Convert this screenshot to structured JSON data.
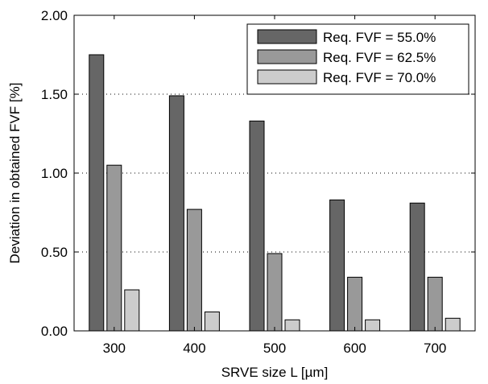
{
  "chart_data": {
    "type": "bar",
    "title": "",
    "xlabel": "SRVE size L [µm]",
    "ylabel": "Deviation in obtained FVF [%]",
    "categories": [
      "300",
      "400",
      "500",
      "600",
      "700"
    ],
    "ylim": [
      0,
      2
    ],
    "yticks": [
      "0.00",
      "0.50",
      "1.00",
      "1.50",
      "2.00"
    ],
    "yticks_values": [
      0,
      0.5,
      1.0,
      1.5,
      2.0
    ],
    "grid": "horizontal-dotted",
    "legend_position": "top-right",
    "series": [
      {
        "name": "Req. FVF = 55.0%",
        "color": "#666666",
        "values": [
          1.75,
          1.49,
          1.33,
          0.83,
          0.81
        ]
      },
      {
        "name": "Req. FVF = 62.5%",
        "color": "#999999",
        "values": [
          1.05,
          0.77,
          0.49,
          0.34,
          0.34
        ]
      },
      {
        "name": "Req. FVF = 70.0%",
        "color": "#cccccc",
        "values": [
          0.26,
          0.12,
          0.07,
          0.07,
          0.08
        ]
      }
    ]
  }
}
